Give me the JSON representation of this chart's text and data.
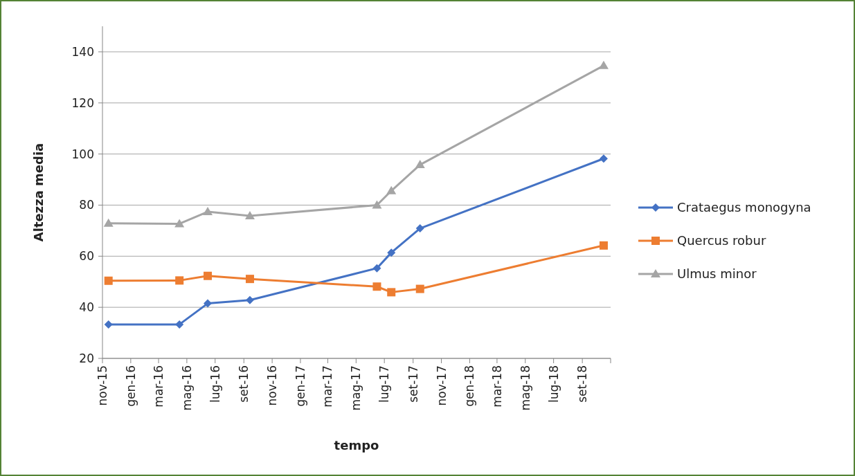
{
  "chart_data": {
    "type": "line",
    "xlabel": "tempo",
    "ylabel": "Altezza media",
    "x": [
      "2015-11-14",
      "2016-04-15",
      "2016-06-15",
      "2016-09-14",
      "2017-06-15",
      "2017-07-16",
      "2017-09-16",
      "2018-10-17"
    ],
    "series": [
      {
        "name": "Crataegus monogyna",
        "color": "#4472c4",
        "marker": "diamond",
        "values": [
          33.3,
          33.3,
          41.5,
          42.8,
          55.3,
          61.4,
          70.9,
          98.2
        ]
      },
      {
        "name": "Quercus robur",
        "color": "#ed7d31",
        "marker": "square",
        "values": [
          50.4,
          50.5,
          52.3,
          51.1,
          48.1,
          45.9,
          47.2,
          64.2
        ]
      },
      {
        "name": "Ulmus minor",
        "color": "#a5a5a5",
        "marker": "triangle",
        "values": [
          72.9,
          72.7,
          77.4,
          75.8,
          80.0,
          85.6,
          95.8,
          134.6
        ]
      }
    ],
    "xlim": [
      "2015-11-01",
      "2018-11-01"
    ],
    "xticks": [
      {
        "value": "2015-11-01",
        "label": "nov-15"
      },
      {
        "value": "2016-01-01",
        "label": "gen-16"
      },
      {
        "value": "2016-03-01",
        "label": "mar-16"
      },
      {
        "value": "2016-05-01",
        "label": "mag-16"
      },
      {
        "value": "2016-07-01",
        "label": "lug-16"
      },
      {
        "value": "2016-09-01",
        "label": "set-16"
      },
      {
        "value": "2016-11-01",
        "label": "nov-16"
      },
      {
        "value": "2017-01-01",
        "label": "gen-17"
      },
      {
        "value": "2017-03-01",
        "label": "mar-17"
      },
      {
        "value": "2017-05-01",
        "label": "mag-17"
      },
      {
        "value": "2017-07-01",
        "label": "lug-17"
      },
      {
        "value": "2017-09-01",
        "label": "set-17"
      },
      {
        "value": "2017-11-01",
        "label": "nov-17"
      },
      {
        "value": "2018-01-01",
        "label": "gen-18"
      },
      {
        "value": "2018-03-01",
        "label": "mar-18"
      },
      {
        "value": "2018-05-01",
        "label": "mag-18"
      },
      {
        "value": "2018-07-01",
        "label": "lug-18"
      },
      {
        "value": "2018-09-01",
        "label": "set-18"
      },
      {
        "value": "2018-11-01",
        "label": null
      }
    ],
    "ylim": [
      20,
      150
    ],
    "yticks": [
      20,
      40,
      60,
      80,
      100,
      120,
      140
    ],
    "grid": "y",
    "legend": "right",
    "line_style": "solid"
  }
}
